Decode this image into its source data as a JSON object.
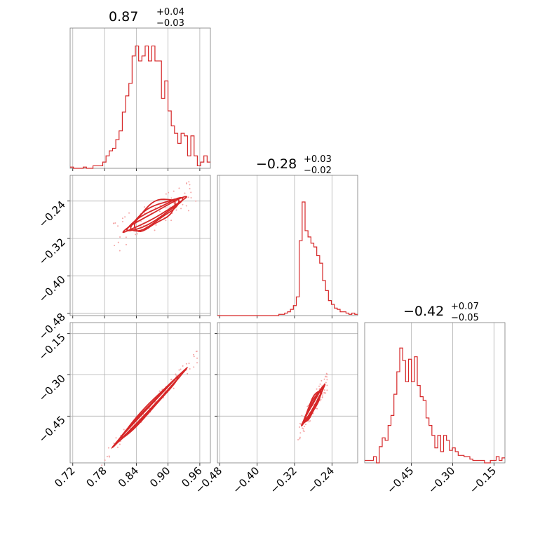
{
  "chart_data": {
    "type": "corner",
    "color": "#d62728",
    "grid": true,
    "parameters": [
      {
        "median": "0.87",
        "plus": "+0.04",
        "minus": "−0.03",
        "range": [
          0.715,
          0.98
        ],
        "ticks": [
          0.72,
          0.78,
          0.84,
          0.9,
          0.96
        ],
        "tick_labels": [
          "0.72",
          "0.78",
          "0.84",
          "0.90",
          "0.96"
        ]
      },
      {
        "median": "−0.28",
        "plus": "+0.03",
        "minus": "−0.02",
        "range": [
          -0.485,
          -0.185
        ],
        "ticks": [
          -0.48,
          -0.4,
          -0.32,
          -0.24
        ],
        "tick_labels": [
          "−0.48",
          "−0.40",
          "−0.32",
          "−0.24"
        ]
      },
      {
        "median": "−0.42",
        "plus": "+0.07",
        "minus": "−0.05",
        "range": [
          -0.62,
          -0.11
        ],
        "ticks": [
          -0.45,
          -0.3,
          -0.15
        ],
        "tick_labels": [
          "−0.45",
          "−0.30",
          "−0.15"
        ]
      }
    ],
    "histograms": [
      {
        "param": 0,
        "x_start": 0.715,
        "x_end": 0.98,
        "max": 1,
        "counts": [
          0.01,
          0,
          0,
          0,
          0.01,
          0,
          0,
          0.02,
          0.02,
          0.02,
          0.05,
          0.1,
          0.14,
          0.16,
          0.23,
          0.3,
          0.45,
          0.58,
          0.68,
          0.9,
          0.98,
          0.86,
          0.9,
          0.98,
          0.86,
          0.98,
          0.86,
          0.86,
          0.56,
          0.7,
          0.46,
          0.34,
          0.28,
          0.2,
          0.28,
          0.26,
          0.1,
          0.26,
          0.1,
          0.02,
          0.05,
          0.1,
          0.05
        ]
      },
      {
        "param": 1,
        "x_start": -0.485,
        "x_end": -0.185,
        "max": 1,
        "counts": [
          0,
          0,
          0,
          0,
          0,
          0,
          0,
          0,
          0,
          0,
          0,
          0,
          0,
          0,
          0,
          0,
          0,
          0,
          0,
          0,
          0,
          0.01,
          0.01,
          0.02,
          0.03,
          0.05,
          0.08,
          0.15,
          0.6,
          0.91,
          0.68,
          0.63,
          0.58,
          0.55,
          0.48,
          0.42,
          0.28,
          0.2,
          0.12,
          0.09,
          0.06,
          0.05,
          0.03,
          0.03,
          0.02,
          0.01,
          0.02,
          0.01
        ]
      },
      {
        "param": 2,
        "x_start": -0.62,
        "x_end": -0.11,
        "max": 1,
        "counts": [
          0.02,
          0.02,
          0.02,
          0.05,
          0,
          0.13,
          0.2,
          0.18,
          0.3,
          0.38,
          0.55,
          0.73,
          0.92,
          0.82,
          0.65,
          0.83,
          0.65,
          0.85,
          0.62,
          0.53,
          0.5,
          0.36,
          0.3,
          0.22,
          0.12,
          0.22,
          0.09,
          0.22,
          0.18,
          0.1,
          0.12,
          0.09,
          0.06,
          0.06,
          0.05,
          0.05,
          0.03,
          0.02,
          0.02,
          0.02,
          0.02,
          0,
          0,
          0.02,
          0.02,
          0.05,
          0.02,
          0.04
        ]
      }
    ],
    "contour_panels": [
      {
        "x_param": 0,
        "y_param": 1,
        "center": [
          0.865,
          -0.275
        ],
        "slope": 0.63,
        "x_lo": 0.815,
        "x_hi": 0.935,
        "thickness": [
          0.006,
          0.012,
          0.018,
          0.024
        ]
      },
      {
        "x_param": 0,
        "y_param": 2,
        "center": [
          0.865,
          -0.42
        ],
        "slope": 2.05,
        "x_lo": 0.795,
        "x_hi": 0.935,
        "thickness": [
          0.006,
          0.011,
          0.016
        ]
      },
      {
        "x_param": 1,
        "y_param": 2,
        "center": [
          -0.28,
          -0.41
        ],
        "slope": 3.0,
        "x_lo": -0.305,
        "x_hi": -0.255,
        "thickness": [
          0.008,
          0.014,
          0.02,
          0.026
        ]
      }
    ]
  }
}
